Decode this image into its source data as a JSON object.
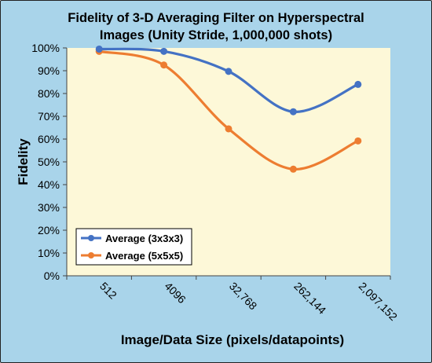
{
  "chart_data": {
    "type": "line",
    "title_line1": "Fidelity of 3-D Averaging Filter on Hyperspectral",
    "title_line2": "Images (Unity Stride, 1,000,000 shots)",
    "xlabel": "Image/Data Size (pixels/datapoints)",
    "ylabel": "Fidelity",
    "categories": [
      "512",
      "4096",
      "32,768",
      "262,144",
      "2,097,152"
    ],
    "y_ticks": [
      "0%",
      "10%",
      "20%",
      "30%",
      "40%",
      "50%",
      "60%",
      "70%",
      "80%",
      "90%",
      "100%"
    ],
    "ylim": [
      0,
      100
    ],
    "legend_position": "bottom-left",
    "grid": false,
    "series": [
      {
        "name": "Average (3x3x3)",
        "color": "#4472c4",
        "values": [
          99.5,
          98.5,
          89.7,
          72.0,
          84.0
        ]
      },
      {
        "name": "Average (5x5x5)",
        "color": "#ed7d31",
        "values": [
          98.5,
          92.5,
          64.5,
          46.8,
          59.2
        ]
      }
    ],
    "plot_background": "#fdf8d8",
    "frame_background": "#a9d4ea"
  }
}
